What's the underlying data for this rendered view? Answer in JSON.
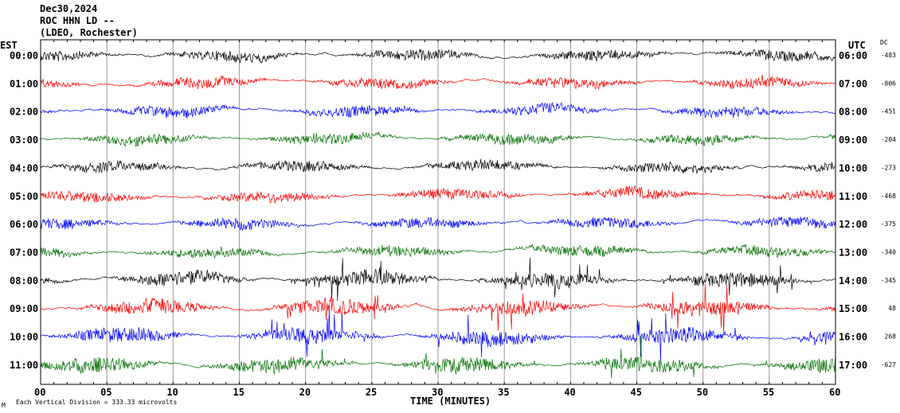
{
  "header": {
    "date": "Dec30,2024",
    "station": "ROC HHN LD --",
    "network": "(LDEO, Rochester)"
  },
  "chart_data": {
    "type": "line",
    "title": "Dec30,2024 ROC HHN LD -- (LDEO, Rochester)",
    "xlabel": "TIME (MINUTES)",
    "xlim": [
      0,
      60
    ],
    "x_ticks": [
      "00",
      "05",
      "10",
      "15",
      "20",
      "25",
      "30",
      "35",
      "40",
      "45",
      "50",
      "55",
      "60"
    ],
    "left_axis_title": "EST",
    "right_axis_title": "UTC",
    "dc_title": "DC",
    "scale_note": "Each Vertical Division =  333.33 microvolts",
    "corner_mark": "M",
    "grid": true,
    "colors": [
      "#000000",
      "#ff0000",
      "#0000ff",
      "#007000"
    ],
    "rows": [
      {
        "est": "00:00",
        "utc": "06:00",
        "dc": "-483"
      },
      {
        "est": "01:00",
        "utc": "07:00",
        "dc": "-806"
      },
      {
        "est": "02:00",
        "utc": "08:00",
        "dc": "-451"
      },
      {
        "est": "03:00",
        "utc": "09:00",
        "dc": "-204"
      },
      {
        "est": "04:00",
        "utc": "10:00",
        "dc": "-273"
      },
      {
        "est": "05:00",
        "utc": "11:00",
        "dc": "-468"
      },
      {
        "est": "06:00",
        "utc": "12:00",
        "dc": "-375"
      },
      {
        "est": "07:00",
        "utc": "13:00",
        "dc": "-340"
      },
      {
        "est": "08:00",
        "utc": "14:00",
        "dc": "-345"
      },
      {
        "est": "09:00",
        "utc": "15:00",
        "dc": "48"
      },
      {
        "est": "10:00",
        "utc": "16:00",
        "dc": "268"
      },
      {
        "est": "11:00",
        "utc": "17:00",
        "dc": "-627"
      }
    ]
  }
}
